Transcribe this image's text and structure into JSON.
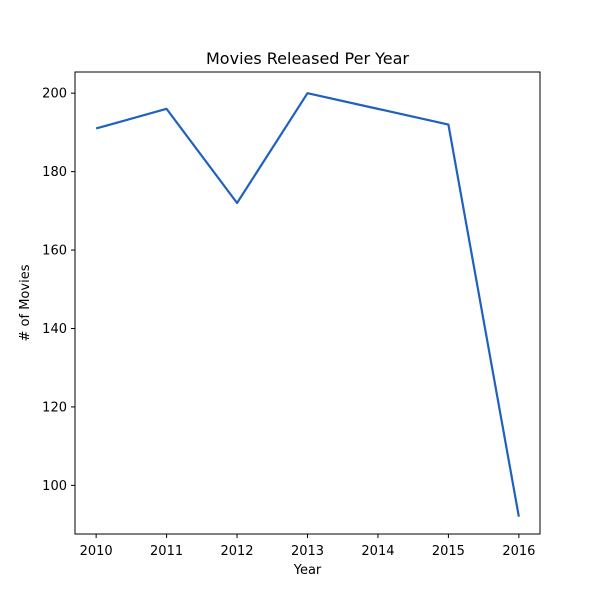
{
  "chart_data": {
    "type": "line",
    "title": "Movies Released Per Year",
    "xlabel": "Year",
    "ylabel": "# of Movies",
    "x": [
      2010,
      2011,
      2012,
      2013,
      2014,
      2015,
      2016
    ],
    "series": [
      {
        "values": [
          191,
          196,
          172,
          200,
          196,
          192,
          92
        ],
        "color": "#2060c0"
      }
    ],
    "xlim": [
      2009.7,
      2016.3
    ],
    "ylim": [
      87.6,
      205.4
    ],
    "xticks": [
      2010,
      2011,
      2012,
      2013,
      2014,
      2015,
      2016
    ],
    "yticks": [
      100,
      120,
      140,
      160,
      180,
      200
    ],
    "grid": false,
    "legend": "none"
  }
}
